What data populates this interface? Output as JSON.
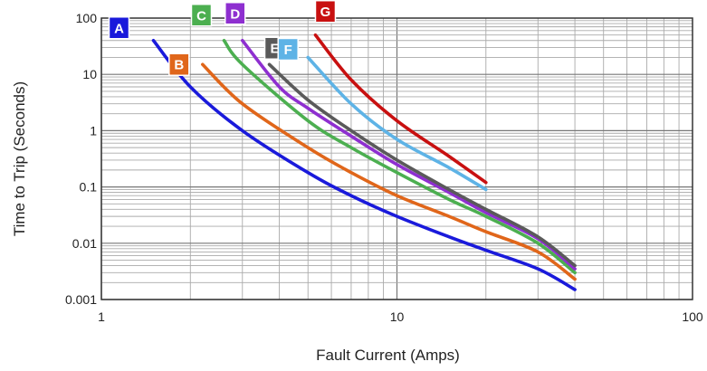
{
  "chart_data": {
    "type": "line",
    "xlabel": "Fault Current (Amps)",
    "ylabel": "Time to Trip (Seconds)",
    "x_scale": "log",
    "y_scale": "log",
    "xlim": [
      1,
      100
    ],
    "ylim": [
      0.001,
      100
    ],
    "x_ticks": [
      "1",
      "10",
      "100"
    ],
    "y_ticks": [
      "0.001",
      "0.01",
      "0.1",
      "1",
      "10",
      "100"
    ],
    "grid": true,
    "series": [
      {
        "name": "A",
        "color": "#1a1adb",
        "points": [
          [
            1.5,
            40
          ],
          [
            2,
            6
          ],
          [
            3,
            1
          ],
          [
            5,
            0.18
          ],
          [
            7,
            0.07
          ],
          [
            10,
            0.03
          ],
          [
            15,
            0.013
          ],
          [
            20,
            0.0075
          ],
          [
            30,
            0.0035
          ],
          [
            40,
            0.0015
          ]
        ]
      },
      {
        "name": "B",
        "color": "#e0661a",
        "points": [
          [
            2.2,
            15
          ],
          [
            3,
            3
          ],
          [
            5,
            0.5
          ],
          [
            7,
            0.18
          ],
          [
            10,
            0.07
          ],
          [
            15,
            0.03
          ],
          [
            20,
            0.016
          ],
          [
            30,
            0.007
          ],
          [
            40,
            0.0023
          ]
        ]
      },
      {
        "name": "C",
        "color": "#4caf50",
        "points": [
          [
            2.6,
            40
          ],
          [
            3,
            15
          ],
          [
            5,
            1.5
          ],
          [
            7,
            0.5
          ],
          [
            10,
            0.18
          ],
          [
            15,
            0.06
          ],
          [
            20,
            0.03
          ],
          [
            30,
            0.01
          ],
          [
            40,
            0.003
          ]
        ]
      },
      {
        "name": "D",
        "color": "#8e2fd0",
        "points": [
          [
            3,
            40
          ],
          [
            4,
            6
          ],
          [
            5,
            2.5
          ],
          [
            7,
            0.8
          ],
          [
            10,
            0.25
          ],
          [
            15,
            0.08
          ],
          [
            20,
            0.035
          ],
          [
            30,
            0.012
          ],
          [
            40,
            0.0035
          ]
        ]
      },
      {
        "name": "E",
        "color": "#5a5a5a",
        "points": [
          [
            3.7,
            15
          ],
          [
            5,
            3.5
          ],
          [
            7,
            1
          ],
          [
            10,
            0.3
          ],
          [
            15,
            0.09
          ],
          [
            20,
            0.04
          ],
          [
            30,
            0.013
          ],
          [
            40,
            0.004
          ]
        ]
      },
      {
        "name": "F",
        "color": "#5eb3e6",
        "points": [
          [
            5,
            20
          ],
          [
            7,
            3
          ],
          [
            10,
            0.7
          ],
          [
            15,
            0.22
          ],
          [
            20,
            0.09
          ]
        ]
      },
      {
        "name": "G",
        "color": "#c81010",
        "points": [
          [
            5.3,
            50
          ],
          [
            7,
            8
          ],
          [
            10,
            1.5
          ],
          [
            15,
            0.35
          ],
          [
            20,
            0.12
          ]
        ]
      }
    ]
  }
}
